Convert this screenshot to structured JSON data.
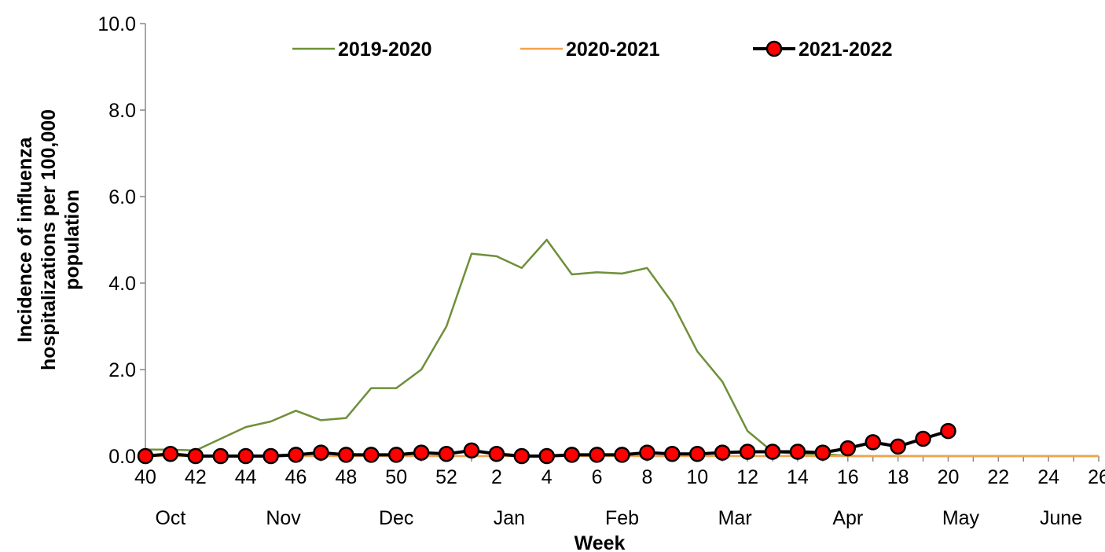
{
  "chart_data": {
    "type": "line",
    "xlabel": "Week",
    "ylabel": [
      "Incidence of influenza",
      "hospitalizations per 100,000",
      "population"
    ],
    "ylim": [
      0,
      10
    ],
    "y_ticks": [
      "0.0",
      "2.0",
      "4.0",
      "6.0",
      "8.0",
      "10.0"
    ],
    "x_weeks": [
      40,
      41,
      42,
      43,
      44,
      45,
      46,
      47,
      48,
      49,
      50,
      51,
      52,
      1,
      2,
      3,
      4,
      5,
      6,
      7,
      8,
      9,
      10,
      11,
      12,
      13,
      14,
      15,
      16,
      17,
      18,
      19,
      20,
      21,
      22,
      23,
      24,
      25,
      26
    ],
    "x_tick_labels": [
      "40",
      "42",
      "44",
      "46",
      "48",
      "50",
      "52",
      "2",
      "4",
      "6",
      "8",
      "10",
      "12",
      "14",
      "16",
      "18",
      "20",
      "22",
      "24",
      "26"
    ],
    "month_labels": [
      {
        "label": "Oct",
        "week_index": 1
      },
      {
        "label": "Nov",
        "week_index": 5.5
      },
      {
        "label": "Dec",
        "week_index": 10
      },
      {
        "label": "Jan",
        "week_index": 14.5
      },
      {
        "label": "Feb",
        "week_index": 19
      },
      {
        "label": "Mar",
        "week_index": 23.5
      },
      {
        "label": "Apr",
        "week_index": 28
      },
      {
        "label": "May",
        "week_index": 32.5
      },
      {
        "label": "June",
        "week_index": 36.5
      }
    ],
    "grid": false,
    "legend_position": "top",
    "series": [
      {
        "name": "2019-2020",
        "color": "#6f8f3a",
        "markers": false,
        "values": [
          0.15,
          0.15,
          0.13,
          0.4,
          0.67,
          0.8,
          1.05,
          0.83,
          0.88,
          1.57,
          1.57,
          2.0,
          3.0,
          4.68,
          4.62,
          4.35,
          5.0,
          4.2,
          4.25,
          4.22,
          4.35,
          3.55,
          2.42,
          1.72,
          0.58,
          0.1,
          0.05,
          0.05,
          0.0,
          0.0,
          0.0,
          0.0,
          0.0,
          0.0,
          0.0,
          0.0,
          0.0,
          0.0,
          0.0
        ]
      },
      {
        "name": "2020-2021",
        "color": "#f4a14c",
        "markers": false,
        "values": [
          0.0,
          0.0,
          0.0,
          0.0,
          0.0,
          0.0,
          0.0,
          0.0,
          0.0,
          0.0,
          0.0,
          0.0,
          0.0,
          0.0,
          0.0,
          0.0,
          0.0,
          0.0,
          0.0,
          0.0,
          0.0,
          0.0,
          0.0,
          0.0,
          0.0,
          0.0,
          0.0,
          0.0,
          0.0,
          0.0,
          0.0,
          0.0,
          0.0,
          0.0,
          0.0,
          0.0,
          0.0,
          0.0,
          0.0
        ]
      },
      {
        "name": "2021-2022",
        "color": "#000000",
        "marker_fill": "#ff0000",
        "markers": true,
        "values": [
          0.0,
          0.05,
          0.0,
          0.0,
          0.0,
          0.0,
          0.03,
          0.08,
          0.03,
          0.03,
          0.03,
          0.08,
          0.05,
          0.13,
          0.05,
          0.0,
          0.0,
          0.03,
          0.03,
          0.03,
          0.08,
          0.05,
          0.05,
          0.08,
          0.1,
          0.1,
          0.1,
          0.08,
          0.18,
          0.32,
          0.22,
          0.4,
          0.58
        ]
      }
    ]
  }
}
